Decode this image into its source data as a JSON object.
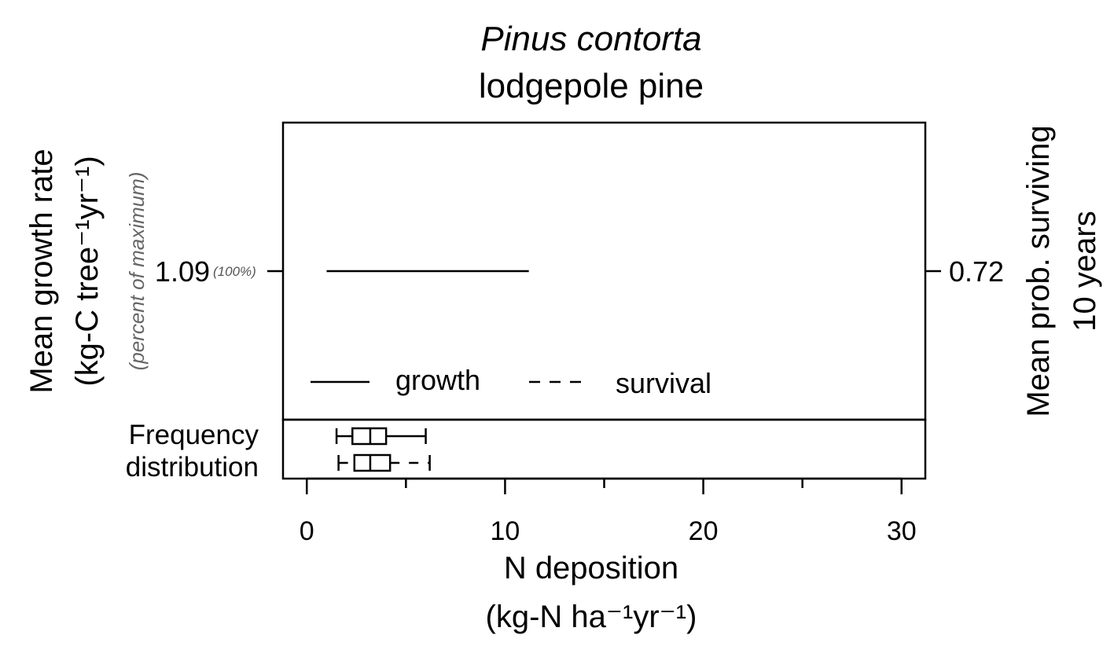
{
  "chart_data": {
    "type": "line",
    "title": "Pinus contorta",
    "subtitle": "lodgepole pine",
    "xlabel_line1": "N deposition",
    "xlabel_line2": "(kg-N ha⁻¹yr⁻¹)",
    "ylabel_left_line1": "Mean growth rate",
    "ylabel_left_line2": "(kg-C tree⁻¹yr⁻¹)",
    "ylabel_left_sub": "(percent of maximum)",
    "ylabel_right_line1": "Mean prob. surviving",
    "ylabel_right_line2": "10 years",
    "xlim": [
      -1.2,
      31.2
    ],
    "xticks": [
      0,
      10,
      20,
      30
    ],
    "xtick_labels": [
      "0",
      "10",
      "20",
      "30"
    ],
    "xminor_ticks": [
      5,
      15,
      25
    ],
    "left_ytick_label": "1.09",
    "left_ytick_pct": "(100%)",
    "right_ytick_label": "0.72",
    "series": [
      {
        "name": "growth",
        "style": "solid",
        "x": [
          1.0,
          11.2
        ],
        "y": [
          1.09,
          1.09
        ]
      }
    ],
    "legend": {
      "position": "bottom",
      "entries": [
        {
          "label": "growth",
          "style": "solid"
        },
        {
          "label": "survival",
          "style": "dashed"
        }
      ]
    },
    "frequency_distribution": {
      "label_line1": "Frequency",
      "label_line2": "distribution",
      "boxes": [
        {
          "series": "growth",
          "style": "solid",
          "min": 1.5,
          "q1": 2.3,
          "median": 3.2,
          "q3": 4.0,
          "max": 6.0
        },
        {
          "series": "survival",
          "style": "dashed",
          "min": 1.6,
          "q1": 2.4,
          "median": 3.2,
          "q3": 4.2,
          "max": 6.2
        }
      ]
    }
  }
}
